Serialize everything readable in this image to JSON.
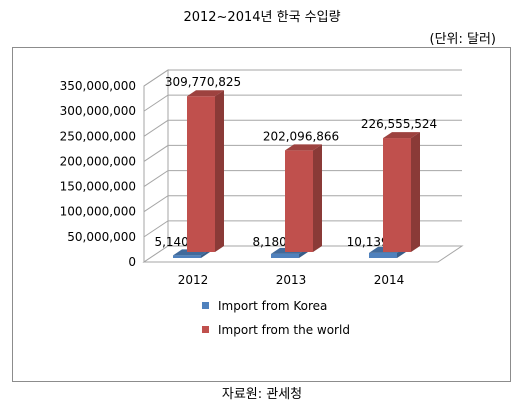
{
  "title": "2012~2014년 한국 수입량",
  "unit": "(단위: 달러)",
  "source": "자료원: 관세청",
  "chart_data": {
    "type": "bar",
    "categories": [
      "2012",
      "2013",
      "2014"
    ],
    "series": [
      {
        "name": "Import from Korea",
        "values": [
          5140793,
          8180715,
          10139318
        ],
        "labels": [
          "5,140,793",
          "8,180,715",
          "10,139,318"
        ],
        "color": "#4f81bd"
      },
      {
        "name": "Import from the world",
        "values": [
          309770825,
          202096866,
          226555524
        ],
        "labels": [
          "309,770,825",
          "202,096,866",
          "226,555,524"
        ],
        "color": "#c0504d"
      }
    ],
    "yticks": [
      "0",
      "50,000,000",
      "100,000,000",
      "150,000,000",
      "200,000,000",
      "250,000,000",
      "300,000,000",
      "350,000,000"
    ],
    "ylim": [
      0,
      350000000
    ],
    "grid": true,
    "legend_position": "bottom"
  }
}
